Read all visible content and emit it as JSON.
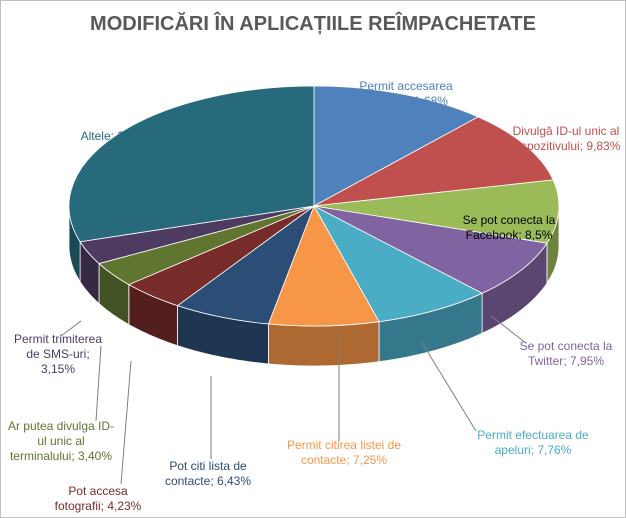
{
  "chart_data": {
    "type": "pie",
    "title": "MODIFICĂRI ÎN APLICAȚIILE REÎMPACHETATE",
    "categories": [
      "Permit accesarea locației",
      "Divulgă ID-ul unic al dispozitivului",
      "Se pot conecta la Facebook",
      "Se pot conecta la Twitter",
      "Permit efectuarea de apeluri",
      "Permit citirea listei de contacte",
      "Pot citi lista de contacte",
      "Pot accesa fotografii",
      "Ar putea divulga ID-ul unic al terminalului",
      "Permit trimiterea de SMS-uri",
      "Altele"
    ],
    "values": [
      11.68,
      9.83,
      8.5,
      7.95,
      7.76,
      7.25,
      6.43,
      4.23,
      3.4,
      3.15,
      29.81
    ],
    "value_labels": [
      "11,68%",
      "9,83%",
      "8,5%",
      "7,95%",
      "7,76%",
      "7,25%",
      "6,43%",
      "4,23%",
      "3,40%",
      "3,15%",
      "29,81"
    ],
    "label_separator": "; ",
    "colors": [
      "#4f81bd",
      "#c0504d",
      "#9bbb59",
      "#8064a2",
      "#4bacc6",
      "#f79646",
      "#2c4d75",
      "#772c2a",
      "#5f7530",
      "#4d3b62",
      "#276a7c"
    ],
    "label_colors": [
      "#4f81bd",
      "#c0504d",
      "#000000",
      "#8064a2",
      "#4bacc6",
      "#f79646",
      "#2c4d75",
      "#772c2a",
      "#5f7530",
      "#4d3b62",
      "#276a7c"
    ]
  }
}
